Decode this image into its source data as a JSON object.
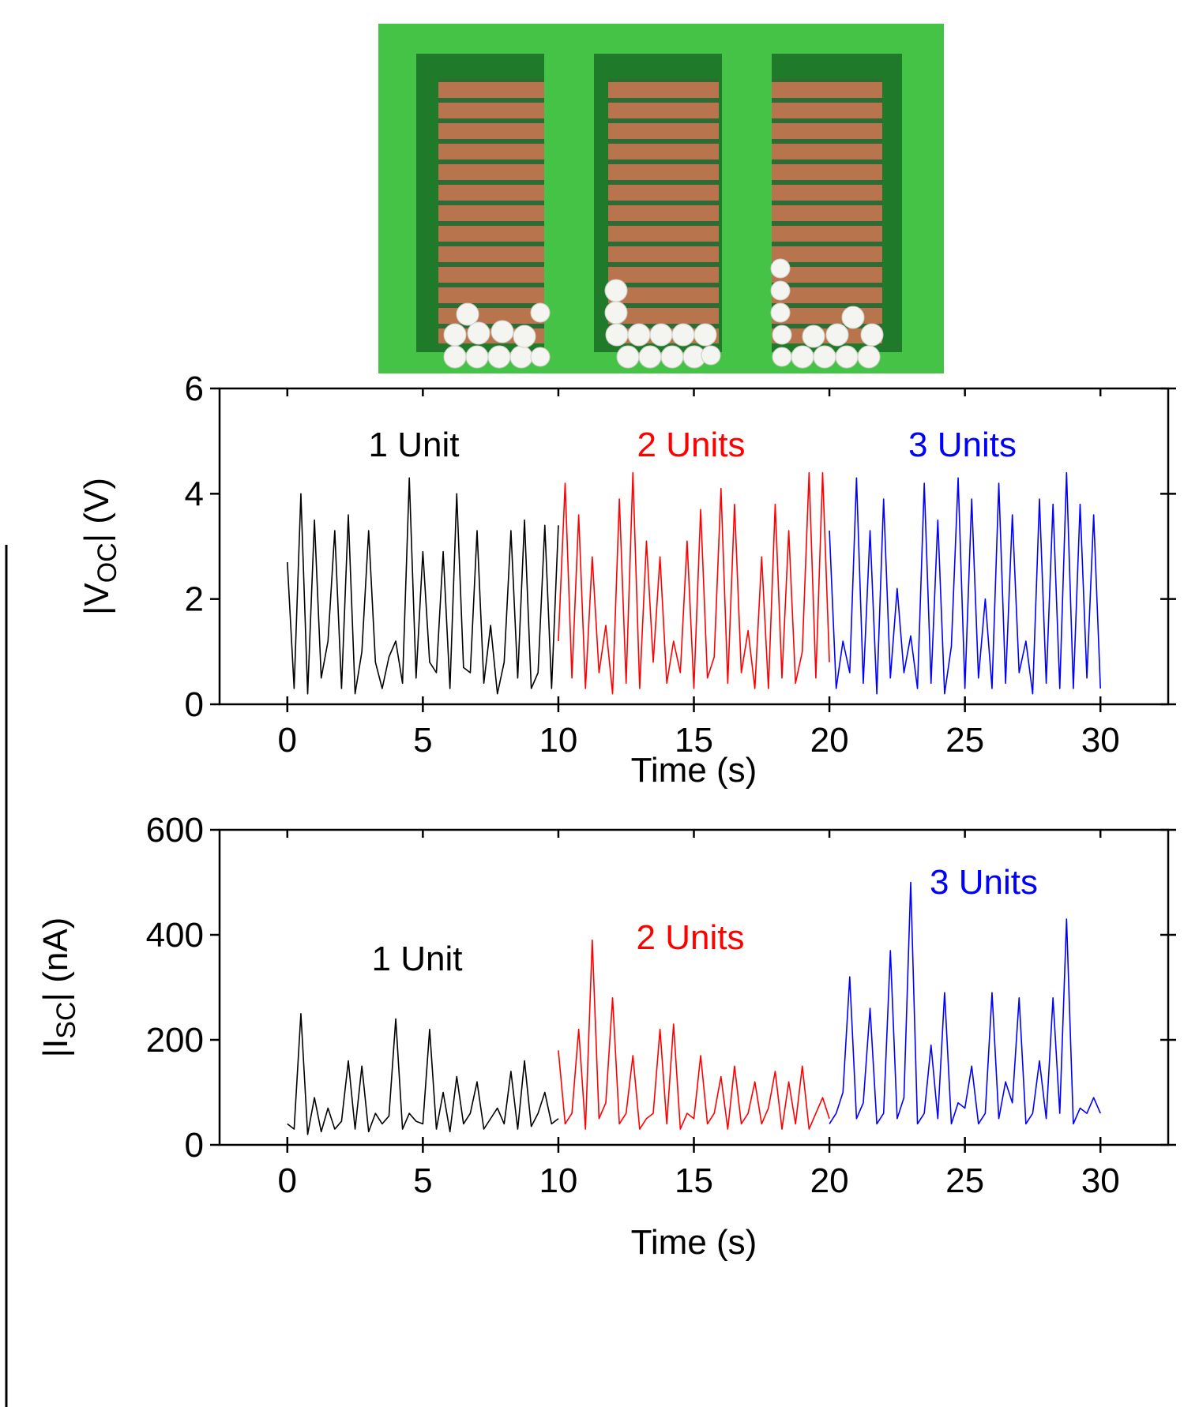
{
  "chart_data": [
    {
      "type": "line",
      "ylabel": [
        "|V",
        "OC",
        "| (V)"
      ],
      "xlabel": "Time (s)",
      "xlim": [
        -2.5,
        32.5
      ],
      "xticks": [
        0,
        5,
        10,
        15,
        20,
        25,
        30
      ],
      "ylim": [
        0,
        6
      ],
      "yticks": [
        0,
        2,
        4,
        6
      ],
      "series": [
        {
          "name": "1 Unit",
          "color": "#000000",
          "x": [
            0,
            0.25,
            0.5,
            0.75,
            1,
            1.25,
            1.5,
            1.75,
            2,
            2.25,
            2.5,
            2.75,
            3,
            3.25,
            3.5,
            3.75,
            4,
            4.25,
            4.5,
            4.75,
            5,
            5.25,
            5.5,
            5.75,
            6,
            6.25,
            6.5,
            6.75,
            7,
            7.25,
            7.5,
            7.75,
            8,
            8.25,
            8.5,
            8.75,
            9,
            9.25,
            9.5,
            9.75,
            10
          ],
          "values": [
            2.7,
            0.3,
            4.0,
            0.2,
            3.5,
            0.5,
            1.2,
            3.3,
            0.3,
            3.6,
            0.2,
            1.0,
            3.3,
            0.8,
            0.3,
            0.9,
            1.2,
            0.4,
            4.3,
            0.5,
            2.9,
            0.8,
            0.6,
            2.9,
            0.3,
            4.0,
            0.7,
            0.6,
            3.3,
            0.4,
            1.5,
            0.2,
            0.8,
            3.3,
            0.5,
            3.5,
            0.3,
            0.6,
            3.4,
            0.3,
            3.4
          ]
        },
        {
          "name": "2 Units",
          "color": "#ff0000",
          "x": [
            10,
            10.25,
            10.5,
            10.75,
            11,
            11.25,
            11.5,
            11.75,
            12,
            12.25,
            12.5,
            12.75,
            13,
            13.25,
            13.5,
            13.75,
            14,
            14.25,
            14.5,
            14.75,
            15,
            15.25,
            15.5,
            15.75,
            16,
            16.25,
            16.5,
            16.75,
            17,
            17.25,
            17.5,
            17.75,
            18,
            18.25,
            18.5,
            18.75,
            19,
            19.25,
            19.5,
            19.75,
            20
          ],
          "values": [
            1.2,
            4.2,
            0.5,
            3.6,
            0.3,
            2.8,
            0.6,
            1.5,
            0.2,
            3.9,
            0.4,
            4.4,
            0.3,
            3.1,
            0.8,
            2.8,
            0.4,
            1.2,
            0.6,
            3.1,
            0.3,
            3.7,
            0.5,
            0.9,
            4.1,
            0.4,
            3.8,
            0.6,
            1.4,
            0.3,
            2.8,
            0.3,
            3.8,
            0.5,
            3.3,
            0.4,
            1.0,
            4.4,
            0.5,
            4.4,
            0.8
          ]
        },
        {
          "name": "3 Units",
          "color": "#0000ff",
          "x": [
            20,
            20.25,
            20.5,
            20.75,
            21,
            21.25,
            21.5,
            21.75,
            22,
            22.25,
            22.5,
            22.75,
            23,
            23.25,
            23.5,
            23.75,
            24,
            24.25,
            24.5,
            24.75,
            25,
            25.25,
            25.5,
            25.75,
            26,
            26.25,
            26.5,
            26.75,
            27,
            27.25,
            27.5,
            27.75,
            28,
            28.25,
            28.5,
            28.75,
            29,
            29.25,
            29.5,
            29.75,
            30
          ],
          "values": [
            3.3,
            0.3,
            1.2,
            0.6,
            4.3,
            0.4,
            3.3,
            0.2,
            3.9,
            0.5,
            2.2,
            0.6,
            1.3,
            0.3,
            4.2,
            0.4,
            3.5,
            0.2,
            1.1,
            4.3,
            0.3,
            3.9,
            0.5,
            2.0,
            0.3,
            4.2,
            0.4,
            3.6,
            0.6,
            1.2,
            0.2,
            3.9,
            0.4,
            3.8,
            0.3,
            4.4,
            0.3,
            3.8,
            0.5,
            3.6,
            0.3
          ]
        }
      ]
    },
    {
      "type": "line",
      "ylabel": [
        "|I",
        "SC",
        "| (nA)"
      ],
      "xlabel": "Time (s)",
      "xlim": [
        -2.5,
        32.5
      ],
      "xticks": [
        0,
        5,
        10,
        15,
        20,
        25,
        30
      ],
      "ylim": [
        0,
        600
      ],
      "yticks": [
        0,
        200,
        400,
        600
      ],
      "series": [
        {
          "name": "1 Unit",
          "color": "#000000",
          "x": [
            0,
            0.25,
            0.5,
            0.75,
            1,
            1.25,
            1.5,
            1.75,
            2,
            2.25,
            2.5,
            2.75,
            3,
            3.25,
            3.5,
            3.75,
            4,
            4.25,
            4.5,
            4.75,
            5,
            5.25,
            5.5,
            5.75,
            6,
            6.25,
            6.5,
            6.75,
            7,
            7.25,
            7.5,
            7.75,
            8,
            8.25,
            8.5,
            8.75,
            9,
            9.25,
            9.5,
            9.75,
            10
          ],
          "values": [
            40,
            30,
            250,
            20,
            90,
            25,
            70,
            30,
            45,
            160,
            30,
            150,
            25,
            60,
            40,
            55,
            240,
            30,
            60,
            45,
            40,
            220,
            30,
            100,
            25,
            130,
            40,
            60,
            120,
            30,
            50,
            70,
            40,
            140,
            30,
            160,
            35,
            60,
            100,
            40,
            50
          ]
        },
        {
          "name": "2 Units",
          "color": "#ff0000",
          "x": [
            10,
            10.25,
            10.5,
            10.75,
            11,
            11.25,
            11.5,
            11.75,
            12,
            12.25,
            12.5,
            12.75,
            13,
            13.25,
            13.5,
            13.75,
            14,
            14.25,
            14.5,
            14.75,
            15,
            15.25,
            15.5,
            15.75,
            16,
            16.25,
            16.5,
            16.75,
            17,
            17.25,
            17.5,
            17.75,
            18,
            18.25,
            18.5,
            18.75,
            19,
            19.25,
            19.5,
            19.75,
            20
          ],
          "values": [
            180,
            40,
            60,
            220,
            30,
            390,
            50,
            80,
            280,
            40,
            60,
            170,
            30,
            50,
            60,
            220,
            40,
            230,
            30,
            60,
            50,
            170,
            40,
            60,
            130,
            30,
            150,
            40,
            60,
            120,
            40,
            70,
            140,
            30,
            120,
            40,
            150,
            30,
            60,
            90,
            50
          ]
        },
        {
          "name": "3 Units",
          "color": "#0000ff",
          "x": [
            20,
            20.25,
            20.5,
            20.75,
            21,
            21.25,
            21.5,
            21.75,
            22,
            22.25,
            22.5,
            22.75,
            23,
            23.25,
            23.5,
            23.75,
            24,
            24.25,
            24.5,
            24.75,
            25,
            25.25,
            25.5,
            25.75,
            26,
            26.25,
            26.5,
            26.75,
            27,
            27.25,
            27.5,
            27.75,
            28,
            28.25,
            28.5,
            28.75,
            29,
            29.25,
            29.5,
            29.75,
            30
          ],
          "values": [
            40,
            60,
            100,
            320,
            50,
            80,
            260,
            40,
            60,
            370,
            50,
            90,
            500,
            40,
            60,
            190,
            50,
            290,
            40,
            80,
            70,
            150,
            40,
            60,
            290,
            50,
            120,
            80,
            280,
            40,
            60,
            160,
            50,
            280,
            60,
            430,
            40,
            70,
            60,
            90,
            60
          ]
        }
      ]
    }
  ]
}
